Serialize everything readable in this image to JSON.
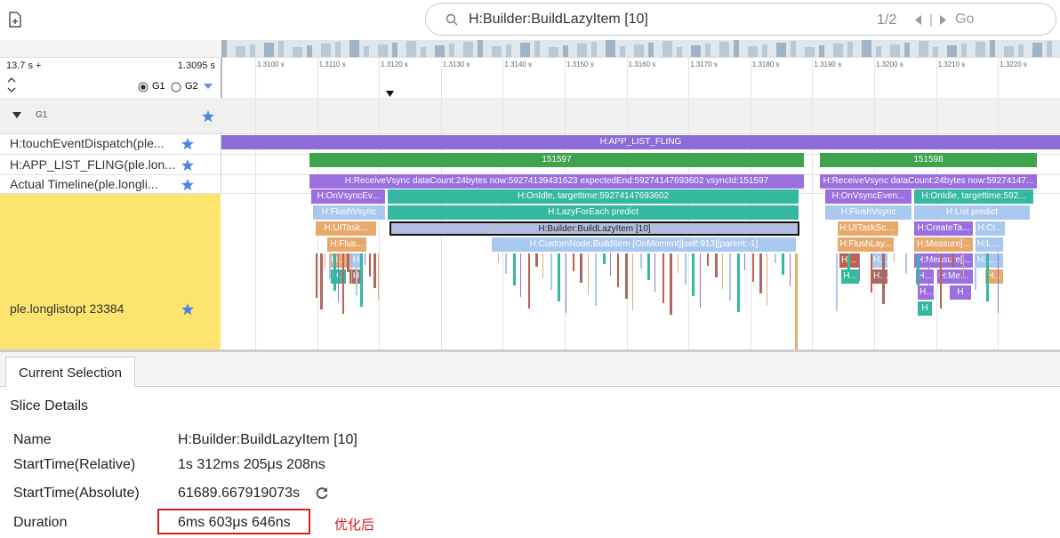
{
  "search": {
    "query": "H:Builder:BuildLazyItem [10]",
    "counter": "1/2",
    "go": "Go"
  },
  "timeline": {
    "range_start": "13.7 s +",
    "range_offset": "1.3095 s",
    "groups": [
      "G1",
      "G2"
    ],
    "ticks": [
      "1.3100 s",
      "1.3110 s",
      "1.3120 s",
      "1.3130 s",
      "1.3140 s",
      "1.3150 s",
      "1.3160 s",
      "1.3170 s",
      "1.3180 s",
      "1.3190 s",
      "1.3200 s",
      "1.3210 s",
      "1.3220 s"
    ]
  },
  "tracks": {
    "group": "G1",
    "names": [
      "H:touchEventDispatch(ple...",
      "H:APP_LIST_FLING(ple.lon...",
      "Actual Timeline(ple.longli...",
      "ple.longlistopt 23384"
    ]
  },
  "slices": [
    "H:APP_LIST_FLING",
    "151597",
    "151598",
    "H:ReceiveVsync dataCount:24bytes now:59274139431623 expectedEnd:59274147693602 vsyncId:151597",
    "H:ReceiveVsync dataCount:24bytes now:59274147...",
    "H:OnVsyncEv...",
    "H:OnIdle, targettime:59274147693602",
    "H:OnVsyncEven...",
    "H:OnIdle, targettime:592...",
    "H:FlushVsync",
    "H:LazyForEach predict",
    "H:FlushVsync",
    "H:List predict",
    "H:UITask...",
    "H:Builder:BuildLazyItem [10]",
    "H:UITaskSch...",
    "H:CreateTa...",
    "H:Cr...",
    "H:Flus...",
    "H:CustomNode:BuildItem [OnMoment][self:913][parent:-1]",
    "H:FlushLay...",
    "H:Measure[...",
    "H:La...",
    "H...",
    "H",
    "H:...",
    "H...",
    "H:Measure[...",
    "H:La...",
    "H...",
    "H",
    "H...",
    "H...",
    "H...",
    "H:Mea...",
    "H...",
    "H...",
    "H",
    "H"
  ],
  "details": {
    "tab": "Current Selection",
    "title": "Slice Details",
    "rows": [
      [
        "Name",
        "H:Builder:BuildLazyItem [10]"
      ],
      [
        "StartTime(Relative)",
        "1s 312ms 205μs 208ns"
      ],
      [
        "StartTime(Absolute)",
        "61689.667919073s"
      ],
      [
        "Duration",
        "6ms 603μs 646ns"
      ]
    ],
    "annotation": "优化后"
  }
}
